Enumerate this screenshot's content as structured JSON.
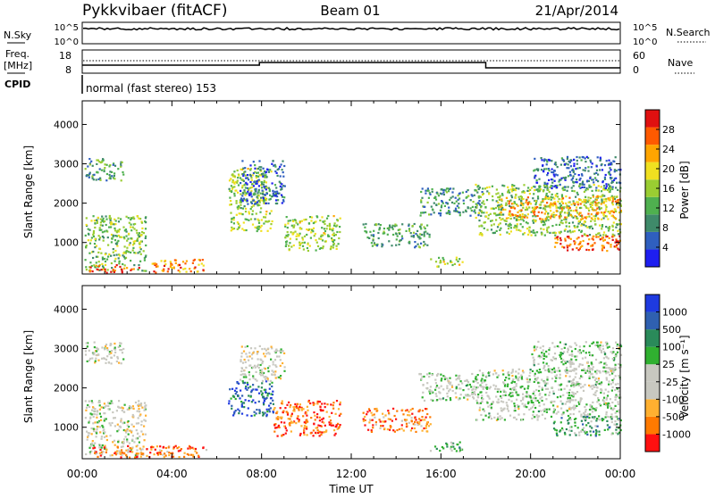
{
  "header": {
    "station": "Pykkvibaer (fitACF)",
    "beam": "Beam 01",
    "date": "21/Apr/2014"
  },
  "top_panels": {
    "nsky_label": "N.Sky",
    "nsky_ticks": [
      "10^5",
      "10^0"
    ],
    "nsearch_label": "N.Search",
    "nsearch_ticks": [
      "10^5",
      "10^0"
    ],
    "freq_label_1": "Freq.",
    "freq_label_2": "[MHz]",
    "freq_ticks": [
      "18",
      "8"
    ],
    "nave_label": "Nave",
    "nave_ticks": [
      "60",
      "0"
    ],
    "cpid_label": "CPID",
    "cpid_text": "normal (fast stereo) 153"
  },
  "colors": {
    "power_scale": [
      "#1e1ef0",
      "#2f5fbf",
      "#3f8a6a",
      "#4fb04f",
      "#9acd32",
      "#f0e020",
      "#ffa500",
      "#ff5a00",
      "#e01010"
    ],
    "velocity_scale": [
      "#ff1010",
      "#ff7a00",
      "#ffb030",
      "#c8c8c0",
      "#c8c8c0",
      "#30b030",
      "#2a8a5a",
      "#2f60b0",
      "#1e3ae0"
    ]
  },
  "chart_data": [
    {
      "type": "heatmap",
      "name": "power",
      "ylabel": "Slant Range [km]",
      "yticks": [
        "1000",
        "2000",
        "3000",
        "4000"
      ],
      "ylim": [
        200,
        4600
      ],
      "xlim": [
        0,
        24
      ],
      "colorbar_label": "Power [dB]",
      "colorbar_ticks": [
        "4",
        "8",
        "12",
        "16",
        "20",
        "24",
        "28"
      ],
      "colorbar_range": [
        0,
        32
      ],
      "regions": [
        {
          "t0": 0.1,
          "t1": 1.8,
          "r0": 2600,
          "r1": 3150,
          "level": 0.35
        },
        {
          "t0": 0.1,
          "t1": 2.8,
          "r0": 300,
          "r1": 1700,
          "level": 0.45
        },
        {
          "t0": 0.3,
          "t1": 2.5,
          "r0": 250,
          "r1": 450,
          "level": 0.9
        },
        {
          "t0": 3.0,
          "t1": 5.5,
          "r0": 250,
          "r1": 600,
          "level": 0.75
        },
        {
          "t0": 6.5,
          "t1": 8.5,
          "r0": 1300,
          "r1": 2900,
          "level": 0.5
        },
        {
          "t0": 7.0,
          "t1": 9.0,
          "r0": 2000,
          "r1": 3100,
          "level": 0.2
        },
        {
          "t0": 9.0,
          "t1": 11.5,
          "r0": 800,
          "r1": 1700,
          "level": 0.5
        },
        {
          "t0": 12.5,
          "t1": 15.5,
          "r0": 900,
          "r1": 1500,
          "level": 0.35
        },
        {
          "t0": 15.0,
          "t1": 17.8,
          "r0": 1700,
          "r1": 2400,
          "level": 0.3
        },
        {
          "t0": 15.5,
          "t1": 17.0,
          "r0": 400,
          "r1": 650,
          "level": 0.55
        },
        {
          "t0": 17.5,
          "t1": 24.0,
          "r0": 1200,
          "r1": 2500,
          "level": 0.45
        },
        {
          "t0": 18.5,
          "t1": 24.0,
          "r0": 1600,
          "r1": 2200,
          "level": 0.7
        },
        {
          "t0": 21.0,
          "t1": 24.0,
          "r0": 800,
          "r1": 1200,
          "level": 0.85
        },
        {
          "t0": 20.0,
          "t1": 24.0,
          "r0": 2400,
          "r1": 3200,
          "level": 0.2
        }
      ]
    },
    {
      "type": "heatmap",
      "name": "velocity",
      "ylabel": "Slant Range [km]",
      "yticks": [
        "1000",
        "2000",
        "3000",
        "4000"
      ],
      "ylim": [
        200,
        4600
      ],
      "xlim": [
        0,
        24
      ],
      "xlabel": "Time UT",
      "xticks": [
        "00:00",
        "04:00",
        "08:00",
        "12:00",
        "16:00",
        "20:00",
        "00:00"
      ],
      "colorbar_label": "Velocity [m s⁻¹]",
      "colorbar_ticks": [
        "-1000",
        "-500",
        "-100",
        "-25",
        "25",
        "100",
        "500",
        "1000"
      ],
      "regions": [
        {
          "t0": 0.1,
          "t1": 1.8,
          "r0": 2600,
          "r1": 3200,
          "level": 0.45
        },
        {
          "t0": 0.1,
          "t1": 2.8,
          "r0": 300,
          "r1": 1700,
          "level": 0.45
        },
        {
          "t0": 0.3,
          "t1": 5.5,
          "r0": 250,
          "r1": 550,
          "level": 0.2
        },
        {
          "t0": 6.5,
          "t1": 8.5,
          "r0": 1300,
          "r1": 2200,
          "level": 0.8
        },
        {
          "t0": 7.0,
          "t1": 9.0,
          "r0": 2200,
          "r1": 3100,
          "level": 0.45
        },
        {
          "t0": 8.5,
          "t1": 11.5,
          "r0": 800,
          "r1": 1700,
          "level": 0.15
        },
        {
          "t0": 12.5,
          "t1": 15.5,
          "r0": 900,
          "r1": 1500,
          "level": 0.2
        },
        {
          "t0": 15.0,
          "t1": 17.8,
          "r0": 1700,
          "r1": 2400,
          "level": 0.5
        },
        {
          "t0": 15.5,
          "t1": 17.0,
          "r0": 400,
          "r1": 650,
          "level": 0.65
        },
        {
          "t0": 17.5,
          "t1": 24.0,
          "r0": 1200,
          "r1": 2500,
          "level": 0.5
        },
        {
          "t0": 21.0,
          "t1": 24.0,
          "r0": 800,
          "r1": 1300,
          "level": 0.65
        },
        {
          "t0": 20.0,
          "t1": 24.0,
          "r0": 2400,
          "r1": 3200,
          "level": 0.5
        }
      ]
    }
  ]
}
